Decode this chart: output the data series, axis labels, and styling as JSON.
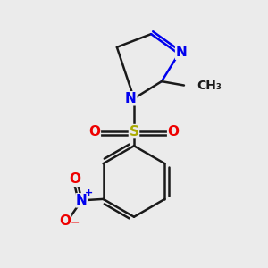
{
  "background_color": "#ebebeb",
  "bond_color": "#1a1a1a",
  "bond_width": 1.8,
  "atom_colors": {
    "N": "#0000ee",
    "O": "#ee0000",
    "S": "#aaaa00",
    "C": "#1a1a1a"
  },
  "font_size_atoms": 11,
  "font_size_methyl": 10,
  "font_size_charge": 8
}
